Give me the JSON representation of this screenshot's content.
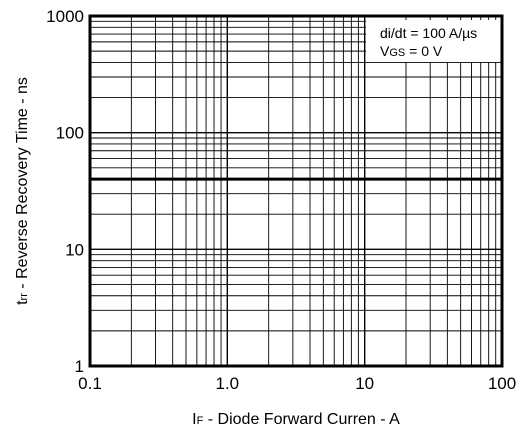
{
  "chart_data": {
    "type": "line",
    "x_scale": "log",
    "y_scale": "log",
    "xlim": [
      0.1,
      100
    ],
    "ylim": [
      1,
      1000
    ],
    "x_ticks": [
      {
        "value": 0.1,
        "label": "0.1"
      },
      {
        "value": 1,
        "label": "1.0"
      },
      {
        "value": 10,
        "label": "10"
      },
      {
        "value": 100,
        "label": "100"
      }
    ],
    "y_ticks": [
      {
        "value": 1,
        "label": "1"
      },
      {
        "value": 10,
        "label": "10"
      },
      {
        "value": 100,
        "label": "100"
      },
      {
        "value": 1000,
        "label": "1000"
      }
    ],
    "xlabel": {
      "sym": "I",
      "sub": "F",
      "rest": " - Diode Forward Curren - A"
    },
    "ylabel": {
      "sym": "t",
      "sub": "rr",
      "rest": " - Reverse Recovery Time - ns"
    },
    "grid": true,
    "annotations": {
      "line1": "di/dt = 100 A/µs",
      "line2_sym": "V",
      "line2_sub": "GS",
      "line2_rest": " = 0 V"
    },
    "series": [
      {
        "x": [
          0.1,
          100
        ],
        "y": [
          40,
          40
        ],
        "color": "#000000"
      }
    ]
  }
}
